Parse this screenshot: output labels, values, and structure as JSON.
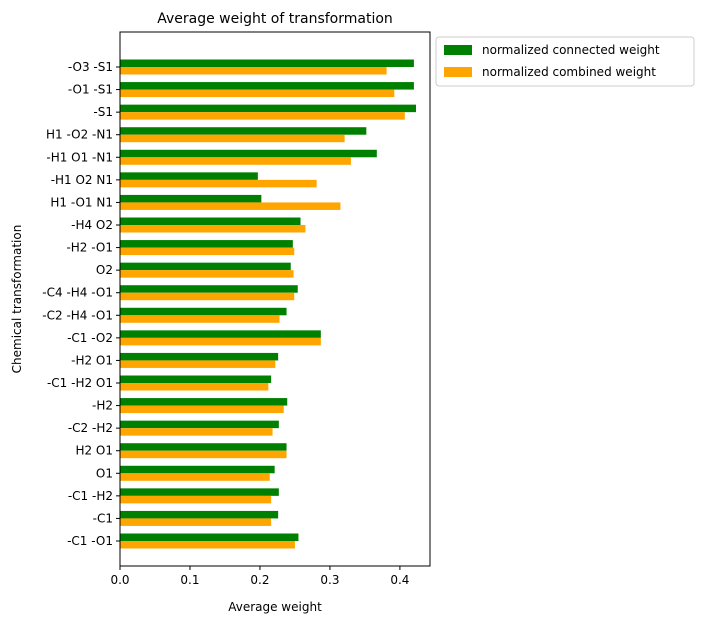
{
  "chart_data": {
    "type": "bar",
    "orientation": "horizontal",
    "title": "Average weight of transformation",
    "xlabel": "Average weight",
    "ylabel": "Chemical transformation",
    "xlim": [
      0.0,
      0.443
    ],
    "xticks": [
      "0.0",
      "0.1",
      "0.2",
      "0.3",
      "0.4"
    ],
    "grid": false,
    "legend_position": "outside-top-right",
    "categories": [
      "-O3 -S1",
      "-O1 -S1",
      "-S1",
      "H1 -O2 -N1",
      "-H1 O1 -N1",
      "-H1 O2 N1",
      "H1 -O1 N1",
      "-H4 O2",
      "-H2 -O1",
      "O2",
      "-C4 -H4 -O1",
      "-C2 -H4 -O1",
      "-C1 -O2",
      "-H2 O1",
      "-C1 -H2 O1",
      "-H2",
      "-C2 -H2",
      "H2 O1",
      "O1",
      "-C1 -H2",
      "-C1",
      "-C1 -O1"
    ],
    "series": [
      {
        "name": "normalized connected weight",
        "color": "#008000",
        "values": [
          0.42,
          0.42,
          0.423,
          0.352,
          0.367,
          0.197,
          0.202,
          0.258,
          0.247,
          0.244,
          0.254,
          0.238,
          0.287,
          0.226,
          0.216,
          0.239,
          0.227,
          0.238,
          0.221,
          0.227,
          0.226,
          0.255
        ]
      },
      {
        "name": "normalized combined weight",
        "color": "#FFA500",
        "values": [
          0.381,
          0.392,
          0.407,
          0.321,
          0.33,
          0.281,
          0.315,
          0.265,
          0.249,
          0.248,
          0.249,
          0.228,
          0.287,
          0.222,
          0.212,
          0.234,
          0.218,
          0.238,
          0.214,
          0.216,
          0.216,
          0.25
        ]
      }
    ]
  }
}
